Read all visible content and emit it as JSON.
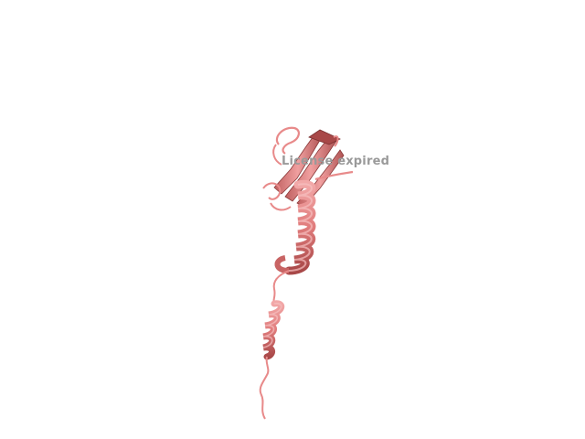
{
  "viewer": {
    "background_color": "#ffffff",
    "cartoon_color": "#e88a8a",
    "cartoon_dark_color": "#a84848",
    "watermark_text": "License expired",
    "watermark_color": "#9a9a9a"
  }
}
